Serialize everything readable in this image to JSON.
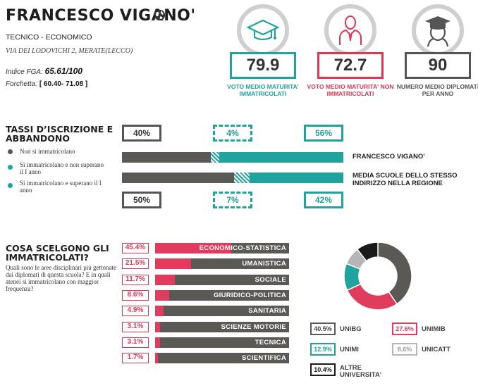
{
  "header": {
    "school_name": "FRANCESCO VIGANO'",
    "type": "TECNICO - ECONOMICO",
    "address": "VIA DEI LODOVICHI 2, MERATE(LECCO)",
    "fga_label": "Indice FGA:",
    "fga_value": "65.61/100",
    "fork_label": "Forchetta:",
    "fork_value": "[ 60.40- 71.08 ]"
  },
  "stats": [
    {
      "value": "79.9",
      "caption": "VOTO MEDIO MATURITA' IMMATRICOLATI",
      "color": "#1fa39c",
      "icon": "graduation-cap-icon"
    },
    {
      "value": "72.7",
      "caption": "VOTO MEDIO MATURITA' NON IMMATRICOLATI",
      "color": "#d93955",
      "icon": "person-icon"
    },
    {
      "value": "90",
      "caption": "NUMERO MEDIO DIPLOMATI PER ANNO",
      "color": "#555555",
      "icon": "graduate-icon"
    }
  ],
  "enrollment": {
    "title": "TASSI D’ISCRIZIONE E ABBANDONO",
    "legend": [
      {
        "label": "Non si immatricolano",
        "color": "#5b5956"
      },
      {
        "label": "Si immatricolano e non superano il I anno",
        "color": "#1fa39c"
      },
      {
        "label": "Si immatricolano e superano il I anno",
        "color": "#1fa39c"
      }
    ],
    "school": {
      "label": "FRANCESCO VIGANO'",
      "values": [
        40,
        4,
        56
      ],
      "labels": [
        "40%",
        "4%",
        "56%"
      ]
    },
    "region": {
      "label": "MEDIA SCUOLE DELLO STESSO INDIRIZZO NELLA REGIONE",
      "values": [
        50,
        7,
        42
      ],
      "labels": [
        "50%",
        "7%",
        "42%"
      ]
    }
  },
  "choices": {
    "title": "COSA SCELGONO GLI IMMATRICOLATI?",
    "question": "Quali sono le aree disciplinari più gettonate dai diplomati di questa scuola? E in quali atenei si immatricolano con maggior frequenza?",
    "rows": [
      {
        "pct": "45.4%",
        "value": 45.4,
        "label": "ECONOMICO-STATISTICA"
      },
      {
        "pct": "21.5%",
        "value": 21.5,
        "label": "UMANISTICA"
      },
      {
        "pct": "11.7%",
        "value": 11.7,
        "label": "SOCIALE"
      },
      {
        "pct": "8.6%",
        "value": 8.6,
        "label": "GIURIDICO-POLITICA"
      },
      {
        "pct": "4.9%",
        "value": 4.9,
        "label": "SANITARIA"
      },
      {
        "pct": "3.1%",
        "value": 3.1,
        "label": "SCIENZE MOTORIE"
      },
      {
        "pct": "3.1%",
        "value": 3.1,
        "label": "TECNICA"
      },
      {
        "pct": "1.7%",
        "value": 1.7,
        "label": "SCIENTIFICA"
      }
    ]
  },
  "universities": [
    {
      "pct": "40.5%",
      "value": 40.5,
      "name": "UNIBG",
      "color": "#5b5956"
    },
    {
      "pct": "27.6%",
      "value": 27.6,
      "name": "UNIMIB",
      "color": "#e03c5d"
    },
    {
      "pct": "12.9%",
      "value": 12.9,
      "name": "UNIMI",
      "color": "#1fa39c"
    },
    {
      "pct": "8.6%",
      "value": 8.6,
      "name": "UNICATT",
      "color": "#b5b5b5"
    },
    {
      "pct": "10.4%",
      "value": 10.4,
      "name": "ALTRE UNIVERSITA'",
      "color": "#1a1a1a"
    }
  ]
}
